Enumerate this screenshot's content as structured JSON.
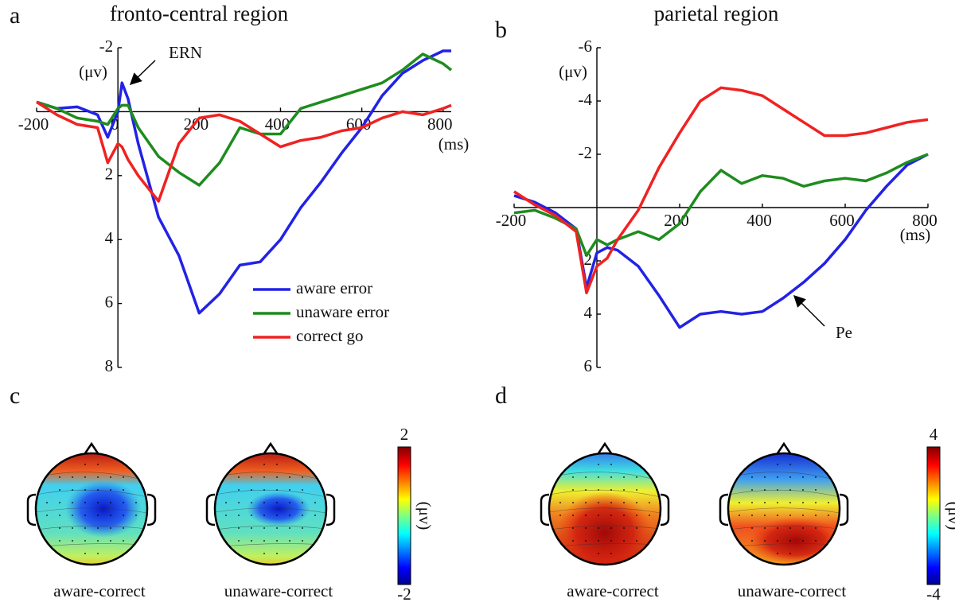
{
  "chart_data": [
    {
      "type": "line",
      "panel": "a",
      "title": "fronto-central region",
      "x": [
        -200,
        -150,
        -100,
        -50,
        -25,
        0,
        10,
        25,
        50,
        100,
        150,
        200,
        250,
        300,
        350,
        400,
        450,
        500,
        550,
        600,
        650,
        700,
        750,
        800,
        820
      ],
      "xlim": [
        -200,
        820
      ],
      "xticks": [
        -200,
        0,
        200,
        400,
        600,
        800
      ],
      "ylim": [
        -2,
        8
      ],
      "yticks": [
        -2,
        2,
        4,
        6,
        8
      ],
      "y_inverted": true,
      "x_unit": "(ms)",
      "y_unit": "(μv)",
      "annotations": [
        "ERN"
      ],
      "legend": "lower right",
      "series": [
        {
          "name": "aware error",
          "color": "#2222e6",
          "values": [
            -0.3,
            -0.1,
            -0.15,
            0.1,
            0.8,
            0.0,
            -0.9,
            -0.4,
            1.0,
            3.3,
            4.5,
            6.3,
            5.7,
            4.8,
            4.7,
            4.0,
            3.0,
            2.2,
            1.3,
            0.5,
            -0.5,
            -1.2,
            -1.6,
            -1.9,
            -1.9
          ]
        },
        {
          "name": "unaware error",
          "color": "#1e8c1e",
          "values": [
            -0.3,
            -0.1,
            0.2,
            0.3,
            0.4,
            -0.1,
            -0.2,
            -0.2,
            0.5,
            1.4,
            1.9,
            2.3,
            1.6,
            0.5,
            0.7,
            0.7,
            -0.1,
            -0.3,
            -0.5,
            -0.7,
            -0.9,
            -1.3,
            -1.8,
            -1.5,
            -1.3
          ]
        },
        {
          "name": "correct go",
          "color": "#f02222",
          "values": [
            -0.3,
            0.1,
            0.4,
            0.5,
            1.6,
            1.0,
            1.1,
            1.5,
            2.0,
            2.8,
            1.0,
            0.2,
            0.1,
            0.3,
            0.7,
            1.1,
            0.9,
            0.8,
            0.6,
            0.5,
            0.2,
            0.0,
            0.1,
            -0.1,
            -0.2
          ]
        }
      ]
    },
    {
      "type": "line",
      "panel": "b",
      "title": "parietal region",
      "x": [
        -200,
        -150,
        -100,
        -50,
        -25,
        0,
        25,
        50,
        100,
        150,
        200,
        250,
        300,
        350,
        400,
        450,
        500,
        550,
        600,
        650,
        700,
        750,
        800
      ],
      "xlim": [
        -200,
        800
      ],
      "xticks": [
        -200,
        200,
        400,
        600,
        800
      ],
      "ylim": [
        -6,
        6
      ],
      "yticks": [
        -6,
        -4,
        -2,
        2,
        4,
        6
      ],
      "y_inverted": true,
      "x_unit": "(ms)",
      "y_unit": "(μv)",
      "annotations": [
        "Pe"
      ],
      "series": [
        {
          "color": "#2222e6",
          "values": [
            -0.45,
            -0.2,
            0.2,
            0.8,
            3.0,
            1.7,
            1.5,
            1.6,
            2.2,
            3.3,
            4.5,
            4.0,
            3.9,
            4.0,
            3.9,
            3.4,
            2.8,
            2.1,
            1.2,
            0.1,
            -0.8,
            -1.6,
            -2.0
          ]
        },
        {
          "color": "#1e8c1e",
          "values": [
            0.2,
            0.1,
            0.4,
            0.8,
            1.8,
            1.2,
            1.4,
            1.2,
            0.9,
            1.2,
            0.6,
            -0.6,
            -1.4,
            -0.9,
            -1.2,
            -1.1,
            -0.8,
            -1.0,
            -1.1,
            -1.0,
            -1.3,
            -1.7,
            -2.0
          ]
        },
        {
          "color": "#f02222",
          "values": [
            -0.6,
            -0.1,
            0.3,
            0.9,
            3.2,
            2.2,
            1.9,
            1.2,
            0.1,
            -1.5,
            -2.8,
            -4.0,
            -4.5,
            -4.4,
            -4.2,
            -3.7,
            -3.2,
            -2.7,
            -2.7,
            -2.8,
            -3.0,
            -3.2,
            -3.3
          ]
        }
      ]
    },
    {
      "type": "topomap",
      "panel": "c",
      "clim": [
        -2,
        2
      ],
      "cticks": [
        2,
        -2
      ],
      "c_unit": "(μv)",
      "maps": [
        "aware-correct",
        "unaware-correct"
      ]
    },
    {
      "type": "topomap",
      "panel": "d",
      "clim": [
        -4,
        4
      ],
      "cticks": [
        4,
        -4
      ],
      "c_unit": "(μv)",
      "maps": [
        "aware-correct",
        "unaware-correct"
      ]
    }
  ]
}
